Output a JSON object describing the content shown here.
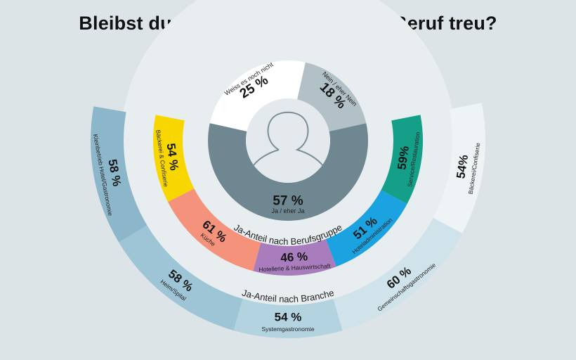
{
  "title": "Bleibst du nach der Lehre deinem Beruf treu?",
  "chart_data": {
    "type": "pie",
    "title": "Bleibst du nach der Lehre deinem Beruf treu?",
    "inner_donut": {
      "icon": "person-icon",
      "slices": [
        {
          "label": "Ja / eher Ja",
          "value": 57,
          "display": "57 %",
          "color": "#6f8791"
        },
        {
          "label": "Weiss es noch nicht",
          "value": 25,
          "display": "25 %",
          "color": "#ffffff"
        },
        {
          "label": "Nein / eher Nein",
          "value": 18,
          "display": "18 %",
          "color": "#b2c1c7"
        }
      ]
    },
    "berufsgruppe_ring": {
      "ring_label": "Ja-Anteil nach Berufsgruppe",
      "segments": [
        {
          "label": "Service/Restauration",
          "value": 59,
          "display": "59%",
          "color": "#14a088"
        },
        {
          "label": "Hoteladministration",
          "value": 51,
          "display": "51 %",
          "color": "#1aa3e0"
        },
        {
          "label": "Hotellerie & Hauswirtschaft",
          "value": 46,
          "display": "46 %",
          "color": "#a97cbd"
        },
        {
          "label": "Küche",
          "value": 61,
          "display": "61 %",
          "color": "#f4927b"
        },
        {
          "label": "Bäckerei & Confiserie",
          "value": 54,
          "display": "54 %",
          "color": "#f8d700"
        }
      ]
    },
    "branche_ring": {
      "ring_label": "Ja-Anteil nach Branche",
      "segments": [
        {
          "label": "Bäckerei/Confiserie",
          "value": 54,
          "display": "54%",
          "color": "#eef3f6"
        },
        {
          "label": "Gemeinschaftsgastronomie",
          "value": 60,
          "display": "60 %",
          "color": "#d0e2ea"
        },
        {
          "label": "Systemgastronomie",
          "value": 54,
          "display": "54 %",
          "color": "#b3d3e0"
        },
        {
          "label": "Heim/Spital",
          "value": 58,
          "display": "58 %",
          "color": "#9dc5d6"
        },
        {
          "label": "Kleinbetrieb Hotel/Gastronomie",
          "value": 58,
          "display": "58 %",
          "color": "#8cb7cb"
        }
      ]
    }
  }
}
